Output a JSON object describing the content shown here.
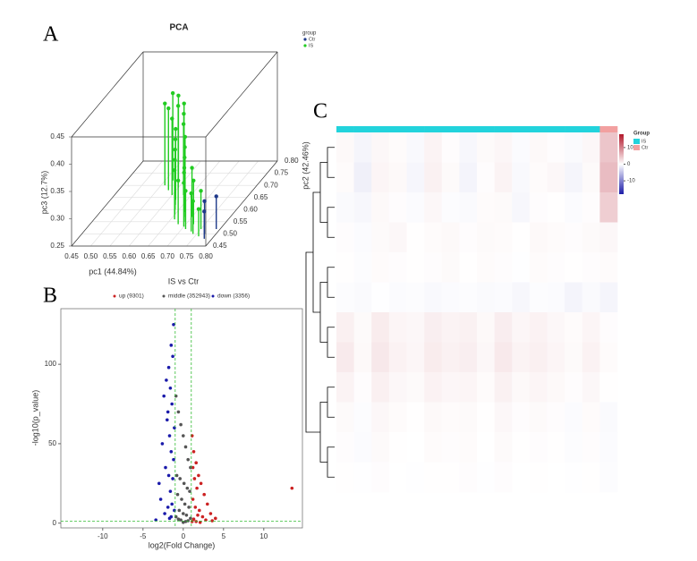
{
  "chart_data": [
    {
      "type": "scatter3d",
      "panel_label": "A",
      "title": "PCA",
      "legend_title": "group",
      "xlabel": "pc1 (44.84%)",
      "ylabel": "pc2 (42.46%)",
      "zlabel": "pc3 (12.7%)",
      "xlim": [
        0.45,
        0.8
      ],
      "ylim": [
        0.45,
        0.8
      ],
      "zlim": [
        0.25,
        0.45
      ],
      "xticks": [
        0.45,
        {
          "value": 0.5,
          "label": "0.50"
        },
        0.55,
        {
          "value": 0.6,
          "label": "0.60"
        },
        0.65,
        {
          "value": 0.7,
          "label": "0.70"
        },
        0.75,
        {
          "value": 0.8,
          "label": "0.80"
        }
      ],
      "yticks": [
        0.45,
        {
          "value": 0.5,
          "label": "0.50"
        },
        0.55,
        {
          "value": 0.6,
          "label": "0.60"
        },
        0.65,
        {
          "value": 0.7,
          "label": "0.70"
        },
        0.75,
        {
          "value": 0.8,
          "label": "0.80"
        }
      ],
      "zticks": [
        0.25,
        {
          "value": 0.3,
          "label": "0.30"
        },
        0.35,
        {
          "value": 0.4,
          "label": "0.40"
        },
        0.45
      ],
      "series": [
        {
          "name": "Ctr",
          "color": "#1f3a8a",
          "x": [
            0.77,
            0.78,
            0.79
          ],
          "y": [
            0.5,
            0.48,
            0.52
          ],
          "z": [
            0.31,
            0.3,
            0.31
          ]
        },
        {
          "name": "IS",
          "color": "#22cc22",
          "x": [
            0.56,
            0.57,
            0.58,
            0.59,
            0.6,
            0.6,
            0.61,
            0.62,
            0.62,
            0.63,
            0.63,
            0.64,
            0.65,
            0.65,
            0.66,
            0.66,
            0.67,
            0.68,
            0.68,
            0.69,
            0.7,
            0.7,
            0.71,
            0.72,
            0.73,
            0.74,
            0.75,
            0.76
          ],
          "y": [
            0.7,
            0.72,
            0.68,
            0.71,
            0.69,
            0.66,
            0.7,
            0.64,
            0.68,
            0.62,
            0.66,
            0.6,
            0.63,
            0.58,
            0.61,
            0.56,
            0.59,
            0.57,
            0.54,
            0.55,
            0.53,
            0.57,
            0.52,
            0.54,
            0.51,
            0.5,
            0.52,
            0.49
          ],
          "z": [
            0.4,
            0.41,
            0.4,
            0.41,
            0.4,
            0.39,
            0.4,
            0.38,
            0.39,
            0.37,
            0.38,
            0.36,
            0.37,
            0.35,
            0.36,
            0.34,
            0.35,
            0.34,
            0.33,
            0.34,
            0.33,
            0.34,
            0.32,
            0.33,
            0.32,
            0.31,
            0.32,
            0.3
          ]
        }
      ]
    },
    {
      "type": "scatter",
      "panel_label": "B",
      "title": "IS vs Ctr",
      "xlabel": "log2(Fold Change)",
      "ylabel": "-log10(p_value)",
      "xlim": [
        -15.2,
        14.8
      ],
      "ylim": [
        -3,
        135
      ],
      "xticks": [
        -10,
        -5,
        0,
        5,
        10
      ],
      "yticks": [
        0,
        50,
        100
      ],
      "vlines": [
        -1,
        1
      ],
      "hline": 1.3,
      "threshold_color": "#33bb33",
      "series": [
        {
          "name": "up (9301)",
          "color": "#cc2222",
          "x": [
            1.1,
            1.3,
            1.6,
            1.2,
            1.9,
            1.4,
            2.2,
            1.7,
            2.6,
            1.2,
            3.0,
            1.5,
            2.0,
            3.4,
            1.8,
            2.4,
            4.0,
            1.3,
            2.8,
            13.5,
            1.1,
            3.6,
            1.6,
            2.1
          ],
          "y": [
            55,
            45,
            38,
            35,
            30,
            28,
            25,
            22,
            18,
            15,
            12,
            10,
            8,
            6,
            5,
            4,
            3,
            2.5,
            2,
            22,
            1,
            1.5,
            1,
            0.5
          ]
        },
        {
          "name": "middle (352943)",
          "color": "#555555",
          "x": [
            -0.9,
            -0.6,
            -0.3,
            0,
            0.3,
            0.6,
            0.9,
            -0.8,
            -0.4,
            0.1,
            0.5,
            0.8,
            -0.7,
            -0.2,
            0.2,
            0.7,
            -0.5,
            0,
            0.4,
            -0.9,
            0.9,
            -0.3,
            0.3,
            0,
            0.6,
            -0.6
          ],
          "y": [
            80,
            70,
            62,
            55,
            48,
            40,
            35,
            30,
            28,
            25,
            22,
            20,
            18,
            15,
            12,
            10,
            8,
            6,
            5,
            4,
            3,
            2,
            1,
            0.5,
            1.5,
            2.5
          ]
        },
        {
          "name": "down (3356)",
          "color": "#1a1aaa",
          "x": [
            -1.2,
            -1.5,
            -1.8,
            -2.1,
            -1.3,
            -1.6,
            -2.4,
            -1.9,
            -1.4,
            -1.1,
            -2.0,
            -1.7,
            -2.6,
            -1.5,
            -1.2,
            -2.2,
            -1.8,
            -1.3,
            -3.0,
            -1.6,
            -2.8,
            -1.4,
            -1.9,
            -1.1,
            -2.3,
            -1.5,
            -1.7,
            -3.4
          ],
          "y": [
            125,
            112,
            98,
            90,
            105,
            85,
            80,
            70,
            75,
            60,
            65,
            55,
            50,
            45,
            40,
            35,
            30,
            28,
            25,
            20,
            15,
            12,
            10,
            8,
            6,
            4,
            3,
            2
          ]
        }
      ]
    },
    {
      "type": "heatmap",
      "panel_label": "C",
      "legend_title": "Group",
      "groups": [
        {
          "name": "IS",
          "color": "#22d3dc"
        },
        {
          "name": "Ctr",
          "color": "#f2a0a0"
        }
      ],
      "column_groups": [
        "IS",
        "IS",
        "IS",
        "IS",
        "IS",
        "IS",
        "IS",
        "IS",
        "IS",
        "IS",
        "IS",
        "IS",
        "IS",
        "IS",
        "IS",
        "Ctr"
      ],
      "colorbar_lim": [
        -18,
        18
      ],
      "colorbar_ticks": [
        10,
        0,
        -10
      ],
      "colors": [
        "#1c1ca8",
        "#ffffff",
        "#b2182b"
      ],
      "values": [
        [
          0.5,
          -0.8,
          0.6,
          0.3,
          -0.5,
          0.9,
          0.2,
          -0.6,
          0.4,
          0.7,
          -0.3,
          0.5,
          0.2,
          -0.4,
          0.6,
          4.5
        ],
        [
          0.3,
          -1.2,
          0.8,
          0.5,
          -0.7,
          1.1,
          0.4,
          -0.9,
          0.2,
          0.9,
          -0.5,
          0.3,
          0.6,
          -0.8,
          0.4,
          5.2
        ],
        [
          -0.4,
          -0.6,
          0.5,
          0.2,
          -0.3,
          0.6,
          -0.2,
          -0.4,
          0.3,
          0.4,
          -0.6,
          0.2,
          0.1,
          -0.3,
          0.2,
          3.8
        ],
        [
          0.2,
          -0.3,
          0.4,
          0.6,
          0.1,
          0.3,
          0.5,
          0.2,
          0.4,
          0.3,
          0.1,
          0.5,
          0.3,
          0.2,
          0.4,
          0.6
        ],
        [
          0.1,
          -0.2,
          0.3,
          0.2,
          0.1,
          0.2,
          0.4,
          0.1,
          0.3,
          0.2,
          -0.1,
          0.3,
          0.2,
          0.1,
          0.2,
          0.3
        ],
        [
          -0.2,
          -0.4,
          -0.1,
          -0.3,
          -0.2,
          -0.5,
          -0.3,
          -0.2,
          -0.4,
          -0.3,
          -0.6,
          -0.2,
          -0.3,
          -0.9,
          -0.4,
          -0.8
        ],
        [
          1.2,
          0.4,
          1.5,
          0.8,
          0.6,
          1.3,
          0.9,
          1.1,
          0.5,
          1.4,
          0.7,
          1.0,
          0.6,
          0.3,
          0.8,
          0.2
        ],
        [
          1.6,
          0.5,
          1.8,
          1.0,
          0.7,
          1.5,
          1.1,
          1.3,
          0.6,
          1.7,
          0.9,
          1.2,
          0.8,
          0.4,
          1.0,
          0.3
        ],
        [
          0.9,
          0.2,
          1.2,
          0.6,
          0.4,
          1.0,
          0.7,
          0.8,
          0.3,
          1.1,
          0.5,
          0.8,
          0.5,
          0.2,
          0.6,
          0.1
        ],
        [
          0.4,
          -0.2,
          0.6,
          0.3,
          0.1,
          0.5,
          0.3,
          0.4,
          0.1,
          0.6,
          0.2,
          0.4,
          0.2,
          -0.3,
          0.3,
          -0.4
        ],
        [
          0.2,
          -0.3,
          0.4,
          0.1,
          0.0,
          0.3,
          0.2,
          0.3,
          0.0,
          0.4,
          0.1,
          0.2,
          0.1,
          -0.2,
          0.2,
          -0.3
        ],
        [
          0.1,
          -0.1,
          0.2,
          0.0,
          -0.1,
          0.1,
          0.1,
          0.2,
          -0.1,
          0.2,
          0.0,
          0.1,
          0.0,
          -0.1,
          0.1,
          -0.2
        ]
      ]
    }
  ]
}
